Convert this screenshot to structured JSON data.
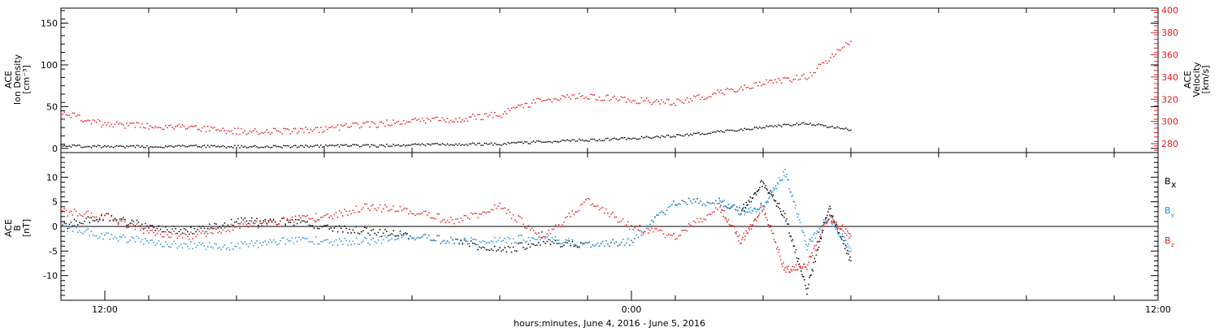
{
  "colors": {
    "black": "#000000",
    "red": "#e31a1c",
    "blue": "#1f8fd6"
  },
  "chart_data": [
    {
      "type": "scatter",
      "panel": "top",
      "left_axis": {
        "label_lines": [
          "ACE",
          "Ion Density",
          "[cm⁻³]"
        ],
        "ylim": [
          -5,
          168
        ],
        "ticks": [
          0,
          50,
          100,
          150
        ],
        "tick_labels": [
          "0",
          "50",
          "100",
          "150"
        ]
      },
      "right_axis": {
        "label_lines": [
          "ACE",
          "Velocity",
          "[km/s]"
        ],
        "ylim": [
          272,
          402
        ],
        "ticks": [
          280,
          300,
          320,
          340,
          360,
          380,
          400
        ],
        "tick_labels": [
          "280",
          "300",
          "320",
          "340",
          "360",
          "380",
          "400"
        ],
        "color": "#e31a1c"
      },
      "series": [
        {
          "color": "#000000",
          "axis": "left",
          "x": [
            0,
            2,
            4,
            6,
            8,
            10,
            12,
            14,
            16,
            18,
            20,
            22,
            24,
            26,
            28,
            30,
            32,
            34,
            36
          ],
          "y": [
            3,
            2,
            2,
            3,
            2,
            2,
            3,
            3,
            4,
            5,
            5,
            8,
            10,
            12,
            15,
            20,
            25,
            30,
            22
          ]
        },
        {
          "color": "#e31a1c",
          "axis": "right",
          "x": [
            0,
            2,
            4,
            6,
            8,
            10,
            12,
            14,
            16,
            18,
            20,
            22,
            24,
            26,
            28,
            30,
            32,
            34,
            36
          ],
          "y": [
            308,
            297,
            296,
            295,
            291,
            291,
            293,
            297,
            300,
            302,
            306,
            320,
            323,
            319,
            317,
            326,
            334,
            340,
            372
          ]
        }
      ]
    },
    {
      "type": "scatter",
      "panel": "bottom",
      "left_axis": {
        "label_lines": [
          "ACE",
          "B",
          "[nT]"
        ],
        "ylim": [
          -15,
          15
        ],
        "ticks": [
          -10,
          -5,
          0,
          5,
          10
        ],
        "tick_labels": [
          "-10",
          "-5",
          "0",
          "5",
          "10"
        ]
      },
      "zero_line": true,
      "series": [
        {
          "name": "B",
          "sub": "x",
          "color": "#000000",
          "x": [
            0,
            2,
            4,
            6,
            8,
            10,
            12,
            14,
            16,
            18,
            20,
            22,
            24,
            26,
            28,
            30,
            31,
            32,
            33,
            34,
            35,
            36
          ],
          "y": [
            0,
            2,
            0,
            -1,
            1,
            1,
            0,
            -1,
            -2,
            -3,
            -5,
            -3,
            -4,
            -3,
            5,
            5,
            3,
            9,
            2,
            -13,
            4,
            -7
          ]
        },
        {
          "name": "B",
          "sub": "y",
          "color": "#1f8fd6",
          "x": [
            0,
            2,
            4,
            6,
            8,
            10,
            12,
            14,
            16,
            18,
            20,
            22,
            24,
            26,
            28,
            30,
            31,
            32,
            33,
            34,
            35,
            36
          ],
          "y": [
            0,
            -2,
            -3,
            -4,
            -4,
            -3,
            -3,
            -3,
            -2,
            -3,
            -3,
            -2,
            -4,
            -3,
            5,
            5,
            3,
            4,
            11,
            -4,
            2,
            -5
          ]
        },
        {
          "name": "B",
          "sub": "z",
          "color": "#e31a1c",
          "x": [
            0,
            2,
            4,
            6,
            8,
            10,
            12,
            14,
            16,
            18,
            20,
            22,
            24,
            26,
            28,
            30,
            31,
            32,
            33,
            34,
            35,
            36
          ],
          "y": [
            3,
            2,
            -1,
            -2,
            0,
            1,
            2,
            4,
            3,
            1,
            4,
            -2,
            5,
            0,
            -2,
            4,
            -3,
            4,
            -9,
            -8,
            2,
            -2
          ]
        }
      ]
    }
  ],
  "x_axis": {
    "xlim": [
      0,
      50
    ],
    "ticks": [
      2,
      26,
      50
    ],
    "tick_labels": [
      "12:00",
      "0:00",
      "12:00"
    ],
    "minor_step": 4,
    "title": "hours:minutes, June  4, 2016 - June  5, 2016"
  }
}
